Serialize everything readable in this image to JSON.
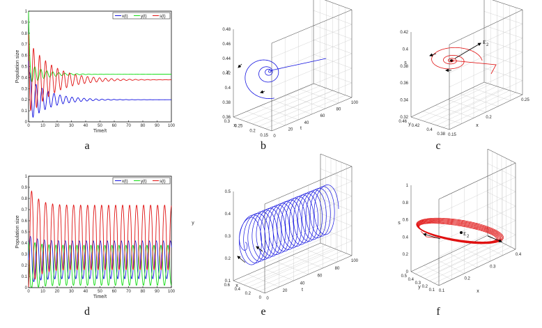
{
  "colors": {
    "x": "#1010e0",
    "y": "#10dd10",
    "s": "#e01010"
  },
  "chart_data": [
    {
      "panel": "a",
      "type": "line",
      "title": "",
      "xlabel": "Time/t",
      "ylabel": "Population size",
      "xlim": [
        0,
        100
      ],
      "ylim": [
        0,
        1
      ],
      "xticks": [
        "0",
        "10",
        "20",
        "30",
        "40",
        "50",
        "60",
        "70",
        "80",
        "90",
        "100"
      ],
      "yticks": [
        "0",
        "0.1",
        "0.2",
        "0.3",
        "0.4",
        "0.5",
        "0.6",
        "0.7",
        "0.8",
        "0.9",
        "1"
      ],
      "legend": [
        "x(t)",
        "y(t)",
        "s(t)"
      ],
      "series": [
        {
          "name": "x(t)",
          "start": 0.55,
          "steady": 0.2,
          "amp": 0.2,
          "period": 4.2,
          "decay": 0.07
        },
        {
          "name": "y(t)",
          "start": 0.95,
          "steady": 0.43,
          "amp": 0.1,
          "period": 4.2,
          "decay": 0.09
        },
        {
          "name": "s(t)",
          "start": 0.7,
          "steady": 0.38,
          "amp": 0.35,
          "period": 4.2,
          "decay": 0.06
        }
      ]
    },
    {
      "panel": "b",
      "type": "line3d",
      "xlabel": "x",
      "ylabel": "y",
      "zlabel": "t",
      "xticks": [
        "0.15",
        "0.2",
        "0.25",
        "0.3"
      ],
      "yticks": [
        "0.36",
        "0.38",
        "0.4",
        "0.42",
        "0.44",
        "0.46",
        "0.48"
      ],
      "tticks": [
        "0",
        "20",
        "40",
        "60",
        "80",
        "100"
      ]
    },
    {
      "panel": "c",
      "type": "line3d",
      "xlabel": "x",
      "ylabel": "y",
      "zlabel": "s",
      "xticks": [
        "0.15",
        "0.2",
        "0.25"
      ],
      "yticks": [
        "0.38",
        "0.4",
        "0.42",
        "0.46"
      ],
      "sticks": [
        "0.32",
        "0.34",
        "0.36",
        "0.38",
        "0.4",
        "0.42"
      ],
      "annotation": "E",
      "annotation_sub": "2"
    },
    {
      "panel": "d",
      "type": "line",
      "title": "",
      "xlabel": "Time/t",
      "ylabel": "Population size",
      "xlim": [
        0,
        100
      ],
      "ylim": [
        0,
        1
      ],
      "xticks": [
        "0",
        "10",
        "20",
        "30",
        "40",
        "50",
        "60",
        "70",
        "80",
        "90",
        "100"
      ],
      "yticks": [
        "0",
        "0.1",
        "0.2",
        "0.3",
        "0.4",
        "0.5",
        "0.6",
        "0.7",
        "0.8",
        "0.9",
        "1"
      ],
      "legend": [
        "x(t)",
        "y(t)",
        "s(t)"
      ],
      "series": [
        {
          "name": "x(t)",
          "steady": 0.25,
          "amp": 0.17,
          "period": 4.9
        },
        {
          "name": "y(t)",
          "steady": 0.2,
          "amp": 0.18,
          "period": 4.9
        },
        {
          "name": "s(t)",
          "steady": 0.45,
          "amp": 0.29,
          "period": 4.9
        }
      ]
    },
    {
      "panel": "e",
      "type": "line3d",
      "xlabel": "x",
      "ylabel": "y",
      "zlabel": "t",
      "xticks": [
        "0",
        "0.2",
        "0.4",
        "0.6"
      ],
      "yticks": [
        "0.1",
        "0.2",
        "0.3",
        "0.4",
        "0.5"
      ],
      "tticks": [
        "0",
        "20",
        "40",
        "60",
        "80",
        "100"
      ]
    },
    {
      "panel": "f",
      "type": "line3d",
      "xlabel": "x",
      "ylabel": "y",
      "zlabel": "s",
      "xticks": [
        "0.1",
        "0.2",
        "0.3",
        "0.4"
      ],
      "yticks": [
        "0.1",
        "0.2",
        "0.3",
        "0.4",
        "0.5"
      ],
      "sticks": [
        "0",
        "0.2",
        "0.4",
        "0.6",
        "0.8",
        "1"
      ],
      "annotation": "E",
      "annotation_sub": "2"
    }
  ]
}
